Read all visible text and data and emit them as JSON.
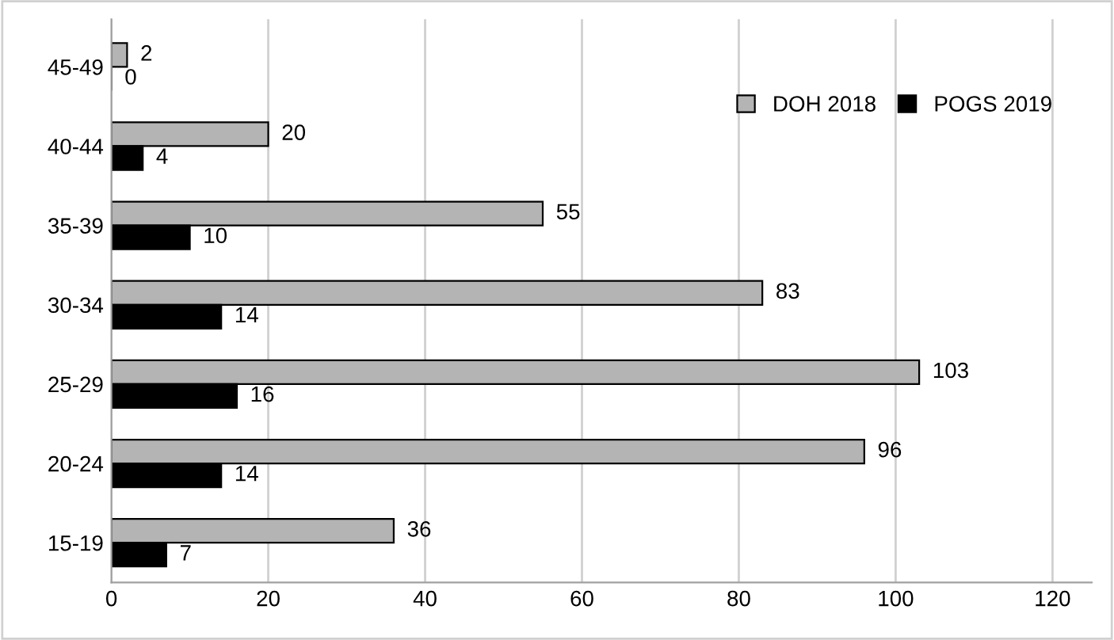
{
  "chart_data": {
    "type": "bar",
    "orientation": "horizontal",
    "categories": [
      "45-49",
      "40-44",
      "35-39",
      "30-34",
      "25-29",
      "20-24",
      "15-19"
    ],
    "series": [
      {
        "name": "DOH 2018",
        "color": "#b4b4b4",
        "values": [
          2,
          20,
          55,
          83,
          103,
          96,
          36
        ]
      },
      {
        "name": "POGS 2019",
        "color": "#000000",
        "values": [
          0,
          4,
          10,
          14,
          16,
          14,
          7
        ]
      }
    ],
    "xlim": [
      0,
      125
    ],
    "xticks": [
      0,
      20,
      40,
      60,
      80,
      100,
      120
    ],
    "grid": "x",
    "legend": "top right",
    "data_labels": true
  }
}
